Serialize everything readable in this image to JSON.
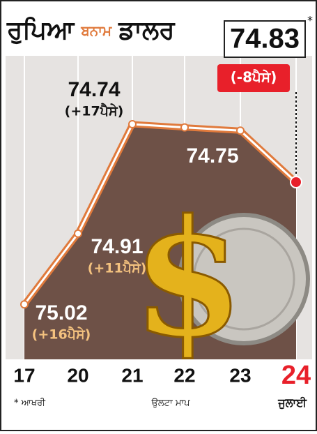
{
  "chart_data": {
    "type": "line",
    "title": [
      "ਰੁਪਿਆ",
      "ਬਨਾਮ",
      "ਡਾਲਰ"
    ],
    "categories": [
      "17",
      "20",
      "21",
      "22",
      "23",
      "24"
    ],
    "x_label": "ਜੁਲਾਈ",
    "values": [
      75.02,
      74.91,
      74.74,
      74.745,
      74.75,
      74.83
    ],
    "value_labels": [
      "75.02",
      "74.91",
      "74.74",
      null,
      "74.75",
      "74.83"
    ],
    "change_labels": [
      "(+16ਪੈਸੇ)",
      "(+11ਪੈਸੇ)",
      "(+17ਪੈਸੇ)",
      null,
      null,
      "(-8ਪੈਸੇ)"
    ],
    "color": "#e07a3c",
    "ylim": [
      75.1,
      74.65
    ],
    "inverted": true,
    "annotations": {
      "star": "*",
      "latest_note": "* ਆਖਰੀ",
      "scale_note": "ਉਲਟਾ ਮਾਪ"
    }
  }
}
